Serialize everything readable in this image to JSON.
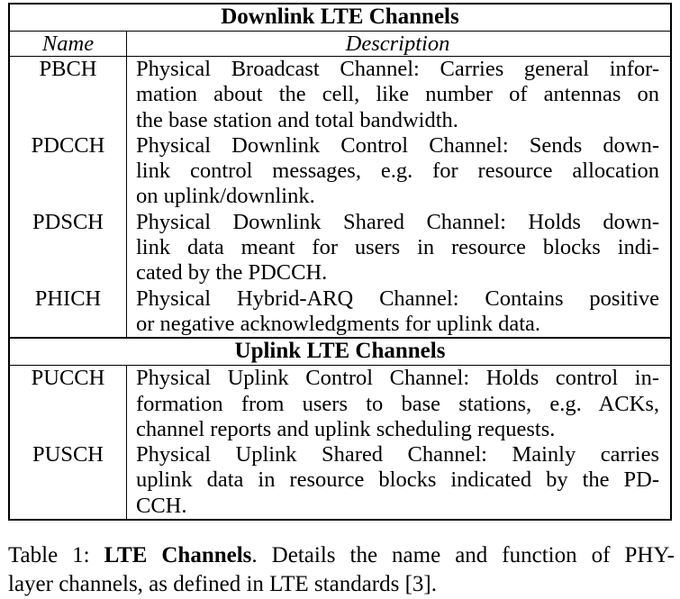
{
  "table": {
    "downlink_title": "Downlink LTE Channels",
    "col_name": "Name",
    "col_description": "Description",
    "downlink_rows": [
      {
        "name": "PBCH",
        "lines": [
          "Physical Broadcast Channel: Carries general infor-",
          "mation about the cell, like number of antennas on",
          "the base station and total bandwidth."
        ]
      },
      {
        "name": "PDCCH",
        "lines": [
          "Physical Downlink Control Channel: Sends down-",
          "link control messages, e.g. for resource allocation",
          "on uplink/downlink."
        ]
      },
      {
        "name": "PDSCH",
        "lines": [
          "Physical Downlink Shared Channel: Holds down-",
          "link data meant for users in resource blocks indi-",
          "cated by the PDCCH."
        ]
      },
      {
        "name": "PHICH",
        "lines": [
          "Physical Hybrid-ARQ Channel: Contains positive",
          "or negative acknowledgments for uplink data."
        ]
      }
    ],
    "uplink_title": "Uplink LTE Channels",
    "uplink_rows": [
      {
        "name": "PUCCH",
        "lines": [
          "Physical Uplink Control Channel: Holds control in-",
          "formation from users to base stations, e.g. ACKs,",
          "channel reports and uplink scheduling requests."
        ]
      },
      {
        "name": "PUSCH",
        "lines": [
          "Physical Uplink Shared Channel: Mainly carries",
          "uplink data in resource blocks indicated by the PD-",
          "CCH."
        ]
      }
    ]
  },
  "caption": {
    "label": "Table 1:",
    "title": "LTE Channels",
    "text_line1": ". Details the name and function of PHY-",
    "text_line2": "layer channels, as defined in LTE standards [3]."
  }
}
